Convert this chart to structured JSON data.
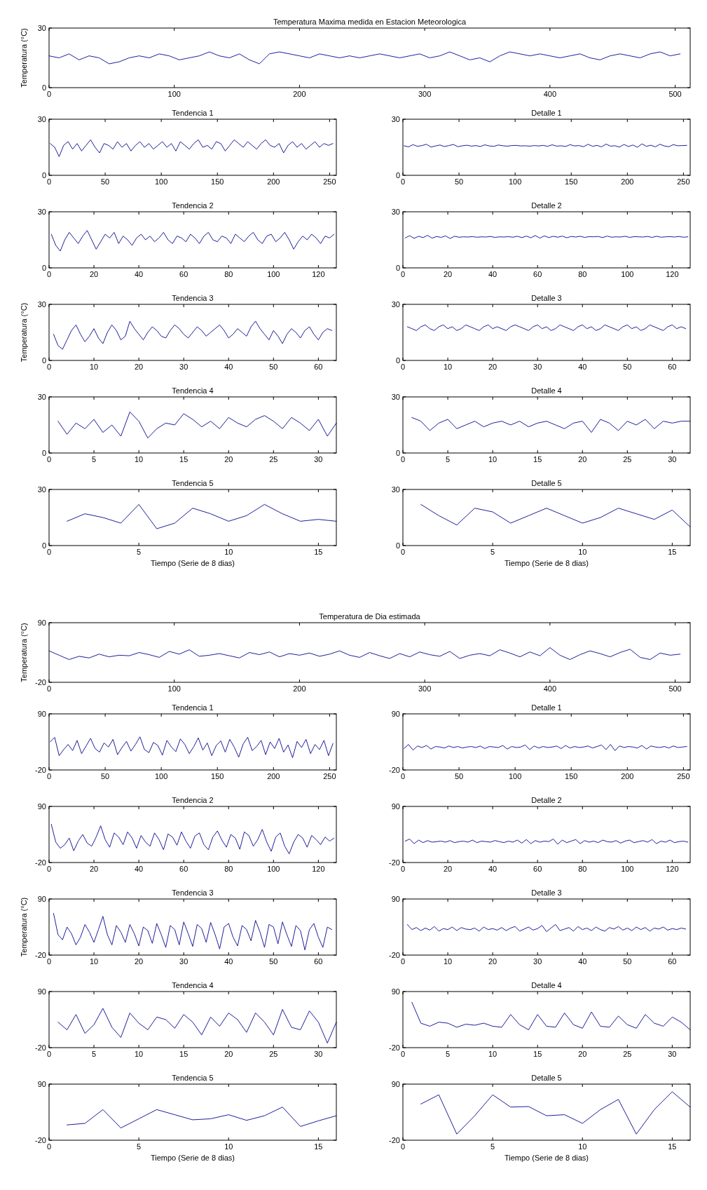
{
  "chart_data": [
    {
      "type": "line",
      "title": "Temperatura Maxima medida en Estacion Meteorologica",
      "ylabel": "Temperatura (°C)",
      "color": "#1f1f9a",
      "xlim": [
        0,
        512
      ],
      "xticks": [
        0,
        100,
        200,
        300,
        400,
        500
      ],
      "ylim": [
        0,
        30
      ],
      "yticks": [
        0,
        30
      ],
      "x": [
        0,
        8,
        16,
        24,
        32,
        40,
        48,
        56,
        64,
        72,
        80,
        88,
        96,
        104,
        112,
        120,
        128,
        136,
        144,
        152,
        160,
        168,
        176,
        184,
        192,
        200,
        208,
        216,
        224,
        232,
        240,
        248,
        256,
        264,
        272,
        280,
        288,
        296,
        304,
        312,
        320,
        328,
        336,
        344,
        352,
        360,
        368,
        376,
        384,
        392,
        400,
        408,
        416,
        424,
        432,
        440,
        448,
        456,
        464,
        472,
        480,
        488,
        496,
        504
      ],
      "values": [
        16,
        15,
        17,
        14,
        16,
        15,
        12,
        13,
        15,
        16,
        15,
        17,
        16,
        14,
        15,
        16,
        18,
        16,
        15,
        17,
        14,
        12,
        17,
        18,
        17,
        16,
        15,
        17,
        16,
        15,
        16,
        15,
        16,
        17,
        16,
        15,
        16,
        17,
        15,
        16,
        18,
        16,
        14,
        15,
        13,
        16,
        18,
        17,
        16,
        17,
        16,
        15,
        16,
        17,
        15,
        14,
        16,
        17,
        16,
        15,
        17,
        18,
        16,
        17
      ]
    },
    {
      "type": "line",
      "title": "Tendencia 1",
      "color": "#1f1f9a",
      "xlim": [
        0,
        256
      ],
      "xticks": [
        0,
        50,
        100,
        150,
        200,
        250
      ],
      "ylim": [
        0,
        30
      ],
      "yticks": [
        0,
        30
      ],
      "x": [
        1,
        5,
        9,
        13,
        17,
        21,
        25,
        29,
        33,
        37,
        41,
        45,
        49,
        53,
        57,
        61,
        65,
        69,
        73,
        77,
        81,
        85,
        89,
        93,
        97,
        101,
        105,
        109,
        113,
        117,
        121,
        125,
        129,
        133,
        137,
        141,
        145,
        149,
        153,
        157,
        161,
        165,
        169,
        173,
        177,
        181,
        185,
        189,
        193,
        197,
        201,
        205,
        209,
        213,
        217,
        221,
        225,
        229,
        233,
        237,
        241,
        245,
        249,
        253
      ],
      "values": [
        17,
        15,
        10,
        16,
        18,
        14,
        17,
        13,
        16,
        19,
        15,
        12,
        17,
        16,
        14,
        18,
        15,
        17,
        13,
        16,
        18,
        15,
        17,
        14,
        16,
        18,
        15,
        17,
        13,
        18,
        16,
        14,
        17,
        19,
        15,
        16,
        14,
        18,
        17,
        13,
        16,
        19,
        17,
        15,
        18,
        16,
        14,
        17,
        19,
        16,
        15,
        17,
        12,
        16,
        18,
        15,
        17,
        14,
        16,
        18,
        15,
        17,
        16,
        17
      ]
    },
    {
      "type": "line",
      "title": "Detalle 1",
      "color": "#1f1f9a",
      "xlim": [
        0,
        256
      ],
      "xticks": [
        0,
        50,
        100,
        150,
        200,
        250
      ],
      "ylim": [
        0,
        30
      ],
      "yticks": [
        0,
        30
      ],
      "x": [
        1,
        5,
        9,
        13,
        17,
        21,
        25,
        29,
        33,
        37,
        41,
        45,
        49,
        53,
        57,
        61,
        65,
        69,
        73,
        77,
        81,
        85,
        89,
        93,
        97,
        101,
        105,
        109,
        113,
        117,
        121,
        125,
        129,
        133,
        137,
        141,
        145,
        149,
        153,
        157,
        161,
        165,
        169,
        173,
        177,
        181,
        185,
        189,
        193,
        197,
        201,
        205,
        209,
        213,
        217,
        221,
        225,
        229,
        233,
        237,
        241,
        245,
        249,
        253
      ],
      "values": [
        15.8,
        15.2,
        16.4,
        15.5,
        15.9,
        16.6,
        15.1,
        15.7,
        16.2,
        15.4,
        15.9,
        16.5,
        15.3,
        15.8,
        16.1,
        15.6,
        15.9,
        15.4,
        16.3,
        15.7,
        15.5,
        16.2,
        15.8,
        15.6,
        15.9,
        16.0,
        15.7,
        15.8,
        15.6,
        15.9,
        15.7,
        16.0,
        15.5,
        16.3,
        15.6,
        15.8,
        15.4,
        16.4,
        15.7,
        15.9,
        15.3,
        16.6,
        15.5,
        16.0,
        15.2,
        16.7,
        15.6,
        15.8,
        15.1,
        16.5,
        15.4,
        16.2,
        15.0,
        16.8,
        15.5,
        16.1,
        15.2,
        16.6,
        15.7,
        15.3,
        16.4,
        15.8,
        15.9,
        16.0
      ]
    },
    {
      "type": "line",
      "title": "Tendencia 2",
      "color": "#1f1f9a",
      "xlim": [
        0,
        128
      ],
      "xticks": [
        0,
        20,
        40,
        60,
        80,
        100,
        120
      ],
      "ylim": [
        0,
        30
      ],
      "yticks": [
        0,
        30
      ],
      "x": [
        1,
        3,
        5,
        7,
        9,
        11,
        13,
        15,
        17,
        19,
        21,
        23,
        25,
        27,
        29,
        31,
        33,
        35,
        37,
        39,
        41,
        43,
        45,
        47,
        49,
        51,
        53,
        55,
        57,
        59,
        61,
        63,
        65,
        67,
        69,
        71,
        73,
        75,
        77,
        79,
        81,
        83,
        85,
        87,
        89,
        91,
        93,
        95,
        97,
        99,
        101,
        103,
        105,
        107,
        109,
        111,
        113,
        115,
        117,
        119,
        121,
        123,
        125,
        127
      ],
      "values": [
        18,
        12,
        9,
        15,
        19,
        16,
        13,
        17,
        20,
        15,
        10,
        14,
        18,
        16,
        19,
        13,
        17,
        15,
        12,
        16,
        18,
        15,
        17,
        14,
        16,
        19,
        15,
        13,
        17,
        16,
        14,
        18,
        16,
        13,
        17,
        19,
        15,
        14,
        17,
        16,
        13,
        18,
        16,
        14,
        17,
        19,
        15,
        13,
        17,
        18,
        14,
        16,
        19,
        15,
        10,
        14,
        17,
        15,
        18,
        16,
        13,
        17,
        16,
        18
      ]
    },
    {
      "type": "line",
      "title": "Detalle 2",
      "color": "#1f1f9a",
      "xlim": [
        0,
        128
      ],
      "xticks": [
        0,
        20,
        40,
        60,
        80,
        100,
        120
      ],
      "ylim": [
        0,
        30
      ],
      "yticks": [
        0,
        30
      ],
      "x": [
        1,
        3,
        5,
        7,
        9,
        11,
        13,
        15,
        17,
        19,
        21,
        23,
        25,
        27,
        29,
        31,
        33,
        35,
        37,
        39,
        41,
        43,
        45,
        47,
        49,
        51,
        53,
        55,
        57,
        59,
        61,
        63,
        65,
        67,
        69,
        71,
        73,
        75,
        77,
        79,
        81,
        83,
        85,
        87,
        89,
        91,
        93,
        95,
        97,
        99,
        101,
        103,
        105,
        107,
        109,
        111,
        113,
        115,
        117,
        119,
        121,
        123,
        125,
        127
      ],
      "values": [
        16.0,
        17.2,
        15.8,
        16.9,
        16.2,
        17.4,
        15.9,
        16.8,
        16.3,
        17.1,
        15.7,
        16.9,
        16.4,
        16.6,
        16.5,
        16.7,
        16.4,
        16.6,
        16.5,
        16.8,
        16.3,
        16.6,
        16.5,
        16.7,
        16.4,
        16.9,
        16.2,
        17.0,
        16.1,
        17.3,
        15.9,
        17.1,
        16.2,
        16.9,
        16.4,
        17.0,
        16.1,
        16.8,
        16.5,
        16.9,
        16.3,
        16.7,
        16.6,
        16.8,
        16.2,
        17.0,
        16.4,
        16.6,
        16.5,
        16.9,
        16.3,
        16.7,
        16.6,
        16.5,
        16.8,
        16.3,
        16.9,
        16.4,
        16.6,
        16.7,
        16.5,
        16.8,
        16.4,
        16.6
      ]
    },
    {
      "type": "line",
      "title": "Tendencia 3",
      "ylabel": "Temperatura (°C)",
      "color": "#1f1f9a",
      "xlim": [
        0,
        64
      ],
      "xticks": [
        0,
        10,
        20,
        30,
        40,
        50,
        60
      ],
      "ylim": [
        0,
        30
      ],
      "yticks": [
        0,
        30
      ],
      "x": [
        1,
        2,
        3,
        4,
        5,
        6,
        7,
        8,
        9,
        10,
        11,
        12,
        13,
        14,
        15,
        16,
        17,
        18,
        19,
        20,
        21,
        22,
        23,
        24,
        25,
        26,
        27,
        28,
        29,
        30,
        31,
        32,
        33,
        34,
        35,
        36,
        37,
        38,
        39,
        40,
        41,
        42,
        43,
        44,
        45,
        46,
        47,
        48,
        49,
        50,
        51,
        52,
        53,
        54,
        55,
        56,
        57,
        58,
        59,
        60,
        61,
        62,
        63
      ],
      "values": [
        14,
        8,
        6,
        11,
        16,
        19,
        14,
        10,
        13,
        17,
        12,
        9,
        15,
        19,
        16,
        11,
        13,
        21,
        17,
        14,
        11,
        15,
        18,
        16,
        13,
        12,
        16,
        19,
        17,
        14,
        12,
        15,
        18,
        16,
        13,
        15,
        17,
        19,
        16,
        12,
        14,
        17,
        15,
        13,
        18,
        21,
        17,
        14,
        11,
        16,
        13,
        9,
        14,
        17,
        15,
        12,
        16,
        18,
        14,
        11,
        15,
        17,
        16
      ]
    },
    {
      "type": "line",
      "title": "Detalle 3",
      "color": "#1f1f9a",
      "xlim": [
        0,
        64
      ],
      "xticks": [
        0,
        10,
        20,
        30,
        40,
        50,
        60
      ],
      "ylim": [
        0,
        30
      ],
      "yticks": [
        0,
        30
      ],
      "x": [
        1,
        2,
        3,
        4,
        5,
        6,
        7,
        8,
        9,
        10,
        11,
        12,
        13,
        14,
        15,
        16,
        17,
        18,
        19,
        20,
        21,
        22,
        23,
        24,
        25,
        26,
        27,
        28,
        29,
        30,
        31,
        32,
        33,
        34,
        35,
        36,
        37,
        38,
        39,
        40,
        41,
        42,
        43,
        44,
        45,
        46,
        47,
        48,
        49,
        50,
        51,
        52,
        53,
        54,
        55,
        56,
        57,
        58,
        59,
        60,
        61,
        62,
        63
      ],
      "values": [
        18,
        17,
        16,
        18,
        19,
        17,
        16,
        18,
        19,
        17,
        18,
        16,
        17,
        19,
        18,
        17,
        16,
        18,
        19,
        17,
        18,
        17,
        16,
        18,
        19,
        18,
        17,
        16,
        18,
        19,
        17,
        18,
        16,
        17,
        19,
        18,
        17,
        16,
        18,
        19,
        17,
        18,
        16,
        17,
        19,
        18,
        17,
        16,
        18,
        19,
        17,
        18,
        16,
        17,
        19,
        18,
        17,
        16,
        18,
        19,
        17,
        18,
        17
      ]
    },
    {
      "type": "line",
      "title": "Tendencia 4",
      "color": "#1f1f9a",
      "xlim": [
        0,
        32
      ],
      "xticks": [
        0,
        5,
        10,
        15,
        20,
        25,
        30
      ],
      "ylim": [
        0,
        30
      ],
      "yticks": [
        0,
        30
      ],
      "x": [
        1,
        2,
        3,
        4,
        5,
        6,
        7,
        8,
        9,
        10,
        11,
        12,
        13,
        14,
        15,
        16,
        17,
        18,
        19,
        20,
        21,
        22,
        23,
        24,
        25,
        26,
        27,
        28,
        29,
        30,
        31,
        32
      ],
      "values": [
        17,
        10,
        16,
        13,
        18,
        11,
        15,
        9,
        22,
        17,
        8,
        13,
        16,
        15,
        21,
        18,
        14,
        17,
        13,
        19,
        16,
        14,
        18,
        20,
        17,
        13,
        19,
        16,
        12,
        18,
        9,
        16
      ]
    },
    {
      "type": "line",
      "title": "Detalle 4",
      "color": "#1f1f9a",
      "xlim": [
        0,
        32
      ],
      "xticks": [
        0,
        5,
        10,
        15,
        20,
        25,
        30
      ],
      "ylim": [
        0,
        30
      ],
      "yticks": [
        0,
        30
      ],
      "x": [
        1,
        2,
        3,
        4,
        5,
        6,
        7,
        8,
        9,
        10,
        11,
        12,
        13,
        14,
        15,
        16,
        17,
        18,
        19,
        20,
        21,
        22,
        23,
        24,
        25,
        26,
        27,
        28,
        29,
        30,
        31,
        32
      ],
      "values": [
        19,
        17,
        12,
        16,
        18,
        13,
        15,
        17,
        14,
        16,
        17,
        15,
        17,
        14,
        16,
        17,
        15,
        13,
        16,
        17,
        11,
        18,
        16,
        12,
        17,
        15,
        18,
        13,
        17,
        16,
        17,
        17
      ]
    },
    {
      "type": "line",
      "title": "Tendencia 5",
      "xlabel": "Tiempo (Serie de 8 dias)",
      "color": "#1f1f9a",
      "xlim": [
        0,
        16
      ],
      "xticks": [
        0,
        5,
        10,
        15
      ],
      "ylim": [
        0,
        30
      ],
      "yticks": [
        0,
        30
      ],
      "x": [
        1,
        2,
        3,
        4,
        5,
        6,
        7,
        8,
        9,
        10,
        11,
        12,
        13,
        14,
        15,
        16
      ],
      "values": [
        13,
        17,
        15,
        12,
        22,
        9,
        12,
        20,
        17,
        13,
        16,
        22,
        17,
        13,
        14,
        13
      ]
    },
    {
      "type": "line",
      "title": "Detalle 5",
      "xlabel": "Tiempo (Serie de 8 dias)",
      "color": "#1f1f9a",
      "xlim": [
        0,
        16
      ],
      "xticks": [
        0,
        5,
        10,
        15
      ],
      "ylim": [
        0,
        30
      ],
      "yticks": [
        0,
        30
      ],
      "x": [
        1,
        2,
        3,
        4,
        5,
        6,
        7,
        8,
        9,
        10,
        11,
        12,
        13,
        14,
        15,
        16
      ],
      "values": [
        22,
        16,
        11,
        20,
        18,
        12,
        16,
        20,
        16,
        12,
        15,
        20,
        17,
        14,
        19,
        10
      ]
    },
    {
      "type": "line",
      "title": "Temperatura de Dia estimada",
      "ylabel": "Temperatura (°C)",
      "color": "#1f1f9a",
      "xlim": [
        0,
        512
      ],
      "xticks": [
        0,
        100,
        200,
        300,
        400,
        500
      ],
      "ylim": [
        -20,
        90
      ],
      "yticks": [
        -20,
        90
      ],
      "x": [
        0,
        8,
        16,
        24,
        32,
        40,
        48,
        56,
        64,
        72,
        80,
        88,
        96,
        104,
        112,
        120,
        128,
        136,
        144,
        152,
        160,
        168,
        176,
        184,
        192,
        200,
        208,
        216,
        224,
        232,
        240,
        248,
        256,
        264,
        272,
        280,
        288,
        296,
        304,
        312,
        320,
        328,
        336,
        344,
        352,
        360,
        368,
        376,
        384,
        392,
        400,
        408,
        416,
        424,
        432,
        440,
        448,
        456,
        464,
        472,
        480,
        488,
        496,
        504
      ],
      "values": [
        38,
        30,
        22,
        28,
        25,
        32,
        27,
        30,
        29,
        35,
        31,
        26,
        37,
        32,
        40,
        28,
        30,
        33,
        29,
        25,
        35,
        31,
        36,
        27,
        33,
        30,
        34,
        28,
        32,
        38,
        30,
        26,
        35,
        29,
        24,
        33,
        27,
        36,
        31,
        28,
        37,
        24,
        30,
        33,
        29,
        40,
        34,
        27,
        36,
        29,
        44,
        30,
        22,
        31,
        38,
        33,
        27,
        35,
        41,
        26,
        22,
        34,
        30,
        32
      ]
    },
    {
      "type": "line",
      "title": "Tendencia 1",
      "color": "#1f1f9a",
      "xlim": [
        0,
        256
      ],
      "xticks": [
        0,
        50,
        100,
        150,
        200,
        250
      ],
      "ylim": [
        -20,
        90
      ],
      "yticks": [
        -20,
        90
      ],
      "x": [
        1,
        5,
        9,
        13,
        17,
        21,
        25,
        29,
        33,
        37,
        41,
        45,
        49,
        53,
        57,
        61,
        65,
        69,
        73,
        77,
        81,
        85,
        89,
        93,
        97,
        101,
        105,
        109,
        113,
        117,
        121,
        125,
        129,
        133,
        137,
        141,
        145,
        149,
        153,
        157,
        161,
        165,
        169,
        173,
        177,
        181,
        185,
        189,
        193,
        197,
        201,
        205,
        209,
        213,
        217,
        221,
        225,
        229,
        233,
        237,
        241,
        245,
        249,
        253
      ],
      "values": [
        35,
        44,
        8,
        20,
        30,
        18,
        38,
        12,
        27,
        42,
        22,
        15,
        33,
        25,
        40,
        10,
        24,
        36,
        17,
        30,
        45,
        20,
        14,
        34,
        28,
        9,
        38,
        25,
        16,
        41,
        30,
        12,
        26,
        43,
        19,
        33,
        8,
        28,
        37,
        15,
        40,
        25,
        5,
        31,
        44,
        18,
        26,
        38,
        10,
        35,
        22,
        42,
        15,
        29,
        4,
        36,
        24,
        40,
        12,
        30,
        20,
        38,
        8,
        32
      ]
    },
    {
      "type": "line",
      "title": "Detalle 1",
      "color": "#1f1f9a",
      "xlim": [
        0,
        256
      ],
      "xticks": [
        0,
        50,
        100,
        150,
        200,
        250
      ],
      "ylim": [
        -20,
        90
      ],
      "yticks": [
        -20,
        90
      ],
      "x": [
        1,
        5,
        9,
        13,
        17,
        21,
        25,
        29,
        33,
        37,
        41,
        45,
        49,
        53,
        57,
        61,
        65,
        69,
        73,
        77,
        81,
        85,
        89,
        93,
        97,
        101,
        105,
        109,
        113,
        117,
        121,
        125,
        129,
        133,
        137,
        141,
        145,
        149,
        153,
        157,
        161,
        165,
        169,
        173,
        177,
        181,
        185,
        189,
        193,
        197,
        201,
        205,
        209,
        213,
        217,
        221,
        225,
        229,
        233,
        237,
        241,
        245,
        249,
        253
      ],
      "values": [
        22,
        30,
        19,
        27,
        24,
        28,
        21,
        26,
        25,
        23,
        27,
        24,
        26,
        23,
        25,
        26,
        24,
        27,
        22,
        26,
        25,
        24,
        28,
        21,
        26,
        24,
        25,
        29,
        20,
        27,
        23,
        26,
        24,
        25,
        27,
        22,
        28,
        23,
        26,
        24,
        25,
        27,
        23,
        26,
        29,
        20,
        30,
        18,
        27,
        24,
        26,
        25,
        23,
        28,
        21,
        27,
        25,
        24,
        26,
        23,
        27,
        24,
        25,
        26
      ]
    },
    {
      "type": "line",
      "title": "Tendencia 2",
      "color": "#1f1f9a",
      "xlim": [
        0,
        128
      ],
      "xticks": [
        0,
        20,
        40,
        60,
        80,
        100,
        120
      ],
      "ylim": [
        -20,
        90
      ],
      "yticks": [
        -20,
        90
      ],
      "x": [
        1,
        3,
        5,
        7,
        9,
        11,
        13,
        15,
        17,
        19,
        21,
        23,
        25,
        27,
        29,
        31,
        33,
        35,
        37,
        39,
        41,
        43,
        45,
        47,
        49,
        51,
        53,
        55,
        57,
        59,
        61,
        63,
        65,
        67,
        69,
        71,
        73,
        75,
        77,
        79,
        81,
        83,
        85,
        87,
        89,
        91,
        93,
        95,
        97,
        99,
        101,
        103,
        105,
        107,
        109,
        111,
        113,
        115,
        117,
        119,
        121,
        123,
        125,
        127
      ],
      "values": [
        55,
        20,
        8,
        15,
        28,
        3,
        22,
        35,
        18,
        12,
        30,
        52,
        25,
        10,
        38,
        30,
        15,
        40,
        28,
        8,
        33,
        20,
        12,
        38,
        25,
        5,
        36,
        30,
        14,
        40,
        22,
        8,
        32,
        38,
        15,
        5,
        30,
        42,
        24,
        10,
        35,
        28,
        6,
        40,
        33,
        12,
        25,
        45,
        20,
        2,
        30,
        38,
        12,
        -3,
        20,
        35,
        28,
        10,
        33,
        25,
        15,
        30,
        22,
        28
      ]
    },
    {
      "type": "line",
      "title": "Detalle 2",
      "color": "#1f1f9a",
      "xlim": [
        0,
        128
      ],
      "xticks": [
        0,
        20,
        40,
        60,
        80,
        100,
        120
      ],
      "ylim": [
        -20,
        90
      ],
      "yticks": [
        -20,
        90
      ],
      "x": [
        1,
        3,
        5,
        7,
        9,
        11,
        13,
        15,
        17,
        19,
        21,
        23,
        25,
        27,
        29,
        31,
        33,
        35,
        37,
        39,
        41,
        43,
        45,
        47,
        49,
        51,
        53,
        55,
        57,
        59,
        61,
        63,
        65,
        67,
        69,
        71,
        73,
        75,
        77,
        79,
        81,
        83,
        85,
        87,
        89,
        91,
        93,
        95,
        97,
        99,
        101,
        103,
        105,
        107,
        109,
        111,
        113,
        115,
        117,
        119,
        121,
        123,
        125,
        127
      ],
      "values": [
        22,
        26,
        17,
        24,
        19,
        23,
        20,
        21,
        22,
        20,
        23,
        19,
        21,
        22,
        20,
        24,
        19,
        22,
        21,
        20,
        23,
        21,
        19,
        22,
        20,
        24,
        18,
        25,
        17,
        23,
        20,
        22,
        21,
        26,
        16,
        24,
        19,
        22,
        25,
        17,
        23,
        20,
        22,
        19,
        24,
        21,
        20,
        23,
        18,
        22,
        24,
        19,
        21,
        23,
        20,
        25,
        17,
        22,
        20,
        24,
        19,
        21,
        22,
        20
      ]
    },
    {
      "type": "line",
      "title": "Tendencia 3",
      "ylabel": "Temperatura (°C)",
      "color": "#1f1f9a",
      "xlim": [
        0,
        64
      ],
      "xticks": [
        0,
        10,
        20,
        30,
        40,
        50,
        60
      ],
      "ylim": [
        -20,
        90
      ],
      "yticks": [
        -20,
        90
      ],
      "x": [
        1,
        2,
        3,
        4,
        5,
        6,
        7,
        8,
        9,
        10,
        11,
        12,
        13,
        14,
        15,
        16,
        17,
        18,
        19,
        20,
        21,
        22,
        23,
        24,
        25,
        26,
        27,
        28,
        29,
        30,
        31,
        32,
        33,
        34,
        35,
        36,
        37,
        38,
        39,
        40,
        41,
        42,
        43,
        44,
        45,
        46,
        47,
        48,
        49,
        50,
        51,
        52,
        53,
        54,
        55,
        56,
        57,
        58,
        59,
        60,
        61,
        62,
        63
      ],
      "values": [
        62,
        20,
        10,
        35,
        22,
        0,
        15,
        40,
        25,
        5,
        30,
        56,
        20,
        0,
        38,
        25,
        5,
        40,
        22,
        -2,
        35,
        28,
        3,
        42,
        20,
        -5,
        38,
        30,
        0,
        45,
        22,
        -3,
        40,
        32,
        5,
        44,
        20,
        -8,
        35,
        42,
        15,
        -2,
        38,
        30,
        8,
        48,
        25,
        -5,
        40,
        35,
        2,
        45,
        20,
        -3,
        38,
        28,
        -10,
        30,
        42,
        15,
        -5,
        35,
        30
      ]
    },
    {
      "type": "line",
      "title": "Detalle 3",
      "color": "#1f1f9a",
      "xlim": [
        0,
        64
      ],
      "xticks": [
        0,
        10,
        20,
        30,
        40,
        50,
        60
      ],
      "ylim": [
        -20,
        90
      ],
      "yticks": [
        -20,
        90
      ],
      "x": [
        1,
        2,
        3,
        4,
        5,
        6,
        7,
        8,
        9,
        10,
        11,
        12,
        13,
        14,
        15,
        16,
        17,
        18,
        19,
        20,
        21,
        22,
        23,
        24,
        25,
        26,
        27,
        28,
        29,
        30,
        31,
        32,
        33,
        34,
        35,
        36,
        37,
        38,
        39,
        40,
        41,
        42,
        43,
        44,
        45,
        46,
        47,
        48,
        49,
        50,
        51,
        52,
        53,
        54,
        55,
        56,
        57,
        58,
        59,
        60,
        61,
        62,
        63
      ],
      "values": [
        40,
        30,
        34,
        28,
        33,
        29,
        36,
        27,
        32,
        30,
        35,
        28,
        34,
        31,
        30,
        33,
        27,
        35,
        30,
        32,
        29,
        34,
        28,
        33,
        36,
        27,
        31,
        35,
        29,
        32,
        38,
        26,
        33,
        40,
        28,
        31,
        34,
        27,
        36,
        30,
        33,
        28,
        35,
        30,
        27,
        34,
        31,
        36,
        29,
        33,
        28,
        35,
        30,
        34,
        27,
        33,
        31,
        35,
        29,
        32,
        30,
        33,
        31
      ]
    },
    {
      "type": "line",
      "title": "Tendencia 4",
      "color": "#1f1f9a",
      "xlim": [
        0,
        32
      ],
      "xticks": [
        0,
        5,
        10,
        15,
        20,
        25,
        30
      ],
      "ylim": [
        -20,
        90
      ],
      "yticks": [
        -20,
        90
      ],
      "x": [
        1,
        2,
        3,
        4,
        5,
        6,
        7,
        8,
        9,
        10,
        11,
        12,
        13,
        14,
        15,
        16,
        17,
        18,
        19,
        20,
        21,
        22,
        23,
        24,
        25,
        26,
        27,
        28,
        29,
        30,
        31,
        32
      ],
      "values": [
        30,
        15,
        45,
        8,
        25,
        57,
        20,
        0,
        48,
        28,
        15,
        40,
        35,
        18,
        45,
        30,
        5,
        40,
        22,
        48,
        35,
        10,
        48,
        30,
        5,
        55,
        20,
        15,
        52,
        30,
        -11,
        30
      ]
    },
    {
      "type": "line",
      "title": "Detalle 4",
      "color": "#1f1f9a",
      "xlim": [
        0,
        32
      ],
      "xticks": [
        0,
        5,
        10,
        15,
        20,
        25,
        30
      ],
      "ylim": [
        -20,
        90
      ],
      "yticks": [
        -20,
        90
      ],
      "x": [
        1,
        2,
        3,
        4,
        5,
        6,
        7,
        8,
        9,
        10,
        11,
        12,
        13,
        14,
        15,
        16,
        17,
        18,
        19,
        20,
        21,
        22,
        23,
        24,
        25,
        26,
        27,
        28,
        29,
        30,
        31,
        32
      ],
      "values": [
        69,
        28,
        22,
        30,
        28,
        20,
        26,
        24,
        28,
        22,
        20,
        45,
        25,
        15,
        45,
        22,
        20,
        48,
        25,
        18,
        50,
        22,
        20,
        42,
        25,
        18,
        45,
        28,
        22,
        40,
        30,
        15
      ]
    },
    {
      "type": "line",
      "title": "Tendencia 5",
      "xlabel": "Tiempo (Serie de 8 dias)",
      "color": "#1f1f9a",
      "xlim": [
        0,
        16
      ],
      "xticks": [
        0,
        5,
        10,
        15
      ],
      "ylim": [
        -20,
        90
      ],
      "yticks": [
        -20,
        90
      ],
      "x": [
        1,
        2,
        3,
        4,
        5,
        6,
        7,
        8,
        9,
        10,
        11,
        12,
        13,
        14,
        15,
        16
      ],
      "values": [
        10,
        13,
        40,
        4,
        22,
        40,
        30,
        20,
        22,
        30,
        19,
        28,
        45,
        7,
        18,
        28
      ]
    },
    {
      "type": "line",
      "title": "Detalle 5",
      "xlabel": "Tiempo (Serie de 8 dias)",
      "color": "#1f1f9a",
      "xlim": [
        0,
        16
      ],
      "xticks": [
        0,
        5,
        10,
        15
      ],
      "ylim": [
        -20,
        90
      ],
      "yticks": [
        -20,
        90
      ],
      "x": [
        1,
        2,
        3,
        4,
        5,
        6,
        7,
        8,
        9,
        10,
        11,
        12,
        13,
        14,
        15,
        16
      ],
      "values": [
        51,
        69,
        -8,
        28,
        69,
        45,
        46,
        28,
        30,
        13,
        40,
        60,
        -8,
        40,
        75,
        45
      ]
    }
  ]
}
